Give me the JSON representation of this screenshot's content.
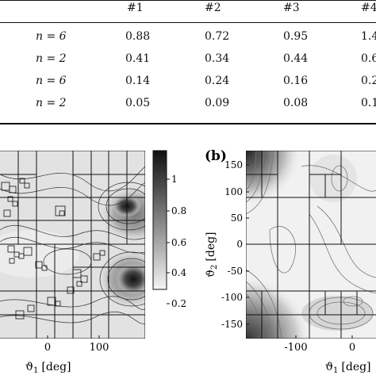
{
  "table": {
    "col_headers": [
      "#1",
      "#2",
      "#3",
      "#4"
    ],
    "rows": [
      {
        "label": "n = 6",
        "values": [
          "0.88",
          "0.72",
          "0.95",
          "1.4"
        ]
      },
      {
        "label": "n = 2",
        "values": [
          "0.41",
          "0.34",
          "0.44",
          "0.6"
        ]
      },
      {
        "label": "n = 6",
        "values": [
          "0.14",
          "0.24",
          "0.16",
          "0.2"
        ]
      },
      {
        "label": "n = 2",
        "values": [
          "0.05",
          "0.09",
          "0.08",
          "0.1"
        ]
      }
    ]
  },
  "panel_a": {
    "xlabel": "ϑ",
    "xlabel_sub": "1",
    "xlabel_unit": "[deg]",
    "x_ticks": [
      "0",
      "100"
    ],
    "colorbar_ticks": [
      "1",
      "0.8",
      "0.6",
      "0.4",
      "0.2"
    ]
  },
  "panel_b": {
    "label": "(b)",
    "ylabel": "ϑ",
    "ylabel_sub": "2",
    "ylabel_unit": "[deg]",
    "xlabel": "ϑ",
    "xlabel_sub": "1",
    "xlabel_unit": "[deg]",
    "y_ticks": [
      "150",
      "100",
      "50",
      "0",
      "-50",
      "-100",
      "-150"
    ],
    "x_ticks": [
      "-100",
      "0"
    ]
  }
}
